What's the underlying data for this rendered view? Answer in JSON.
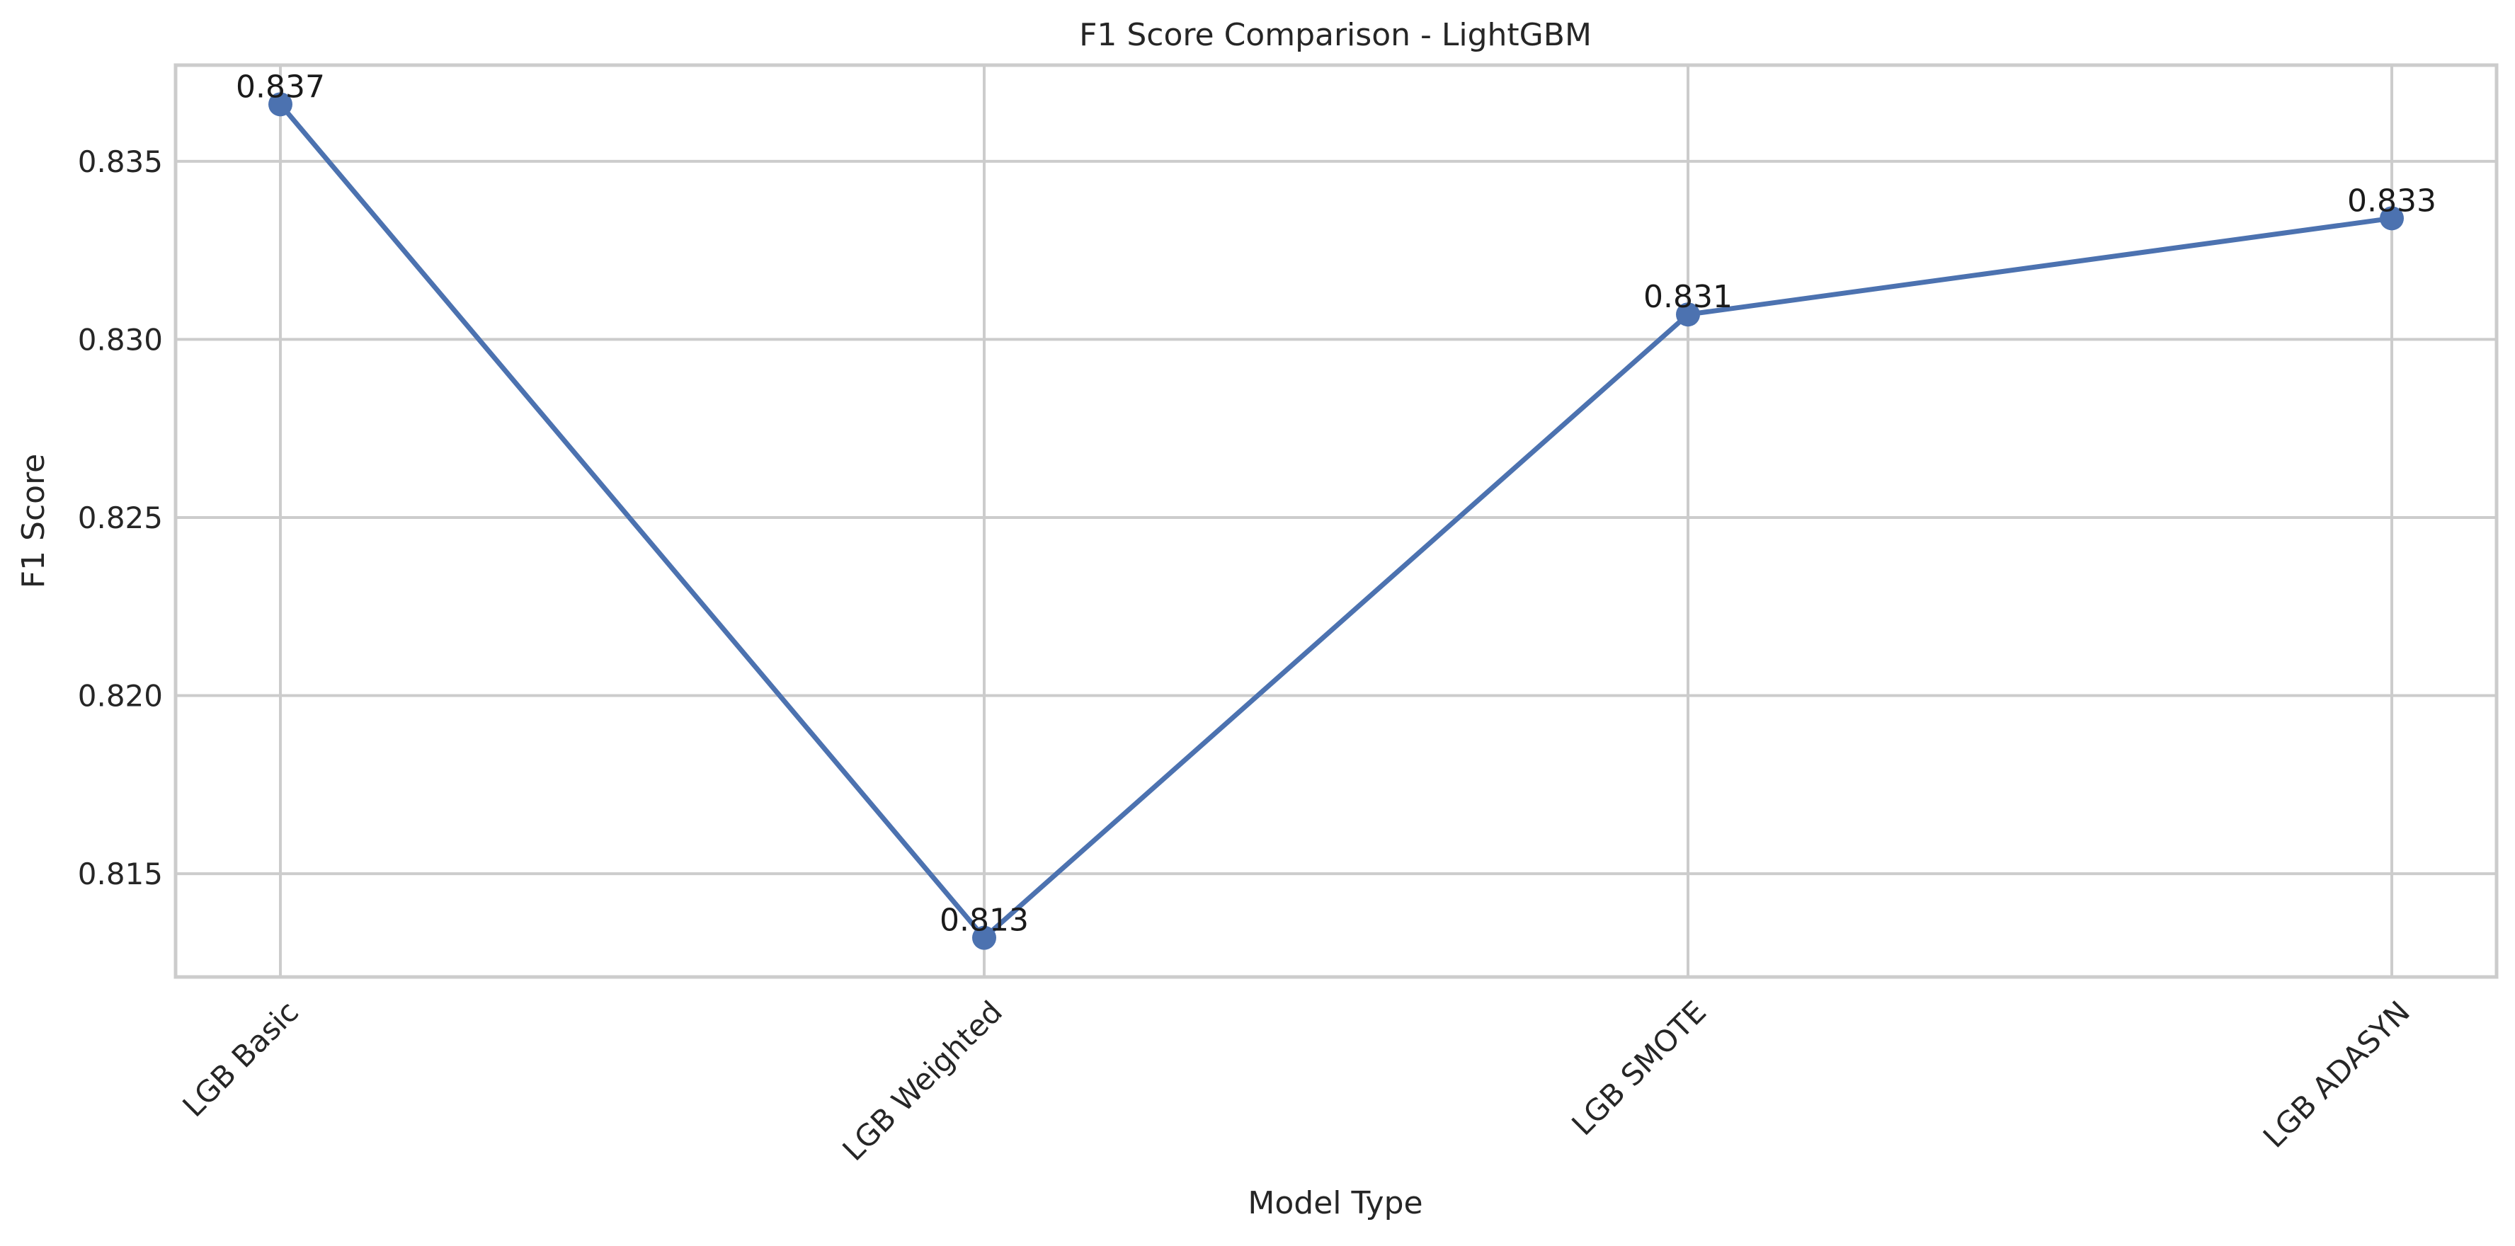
{
  "chart_data": {
    "type": "line",
    "title": "F1 Score Comparison - LightGBM",
    "xlabel": "Model Type",
    "ylabel": "F1 Score",
    "categories": [
      "LGB Basic",
      "LGB Weighted",
      "LGB SMOTE",
      "LGB ADASYN"
    ],
    "values": [
      0.8366,
      0.8132,
      0.8307,
      0.8334
    ],
    "data_labels": [
      "0.837",
      "0.813",
      "0.831",
      "0.833"
    ],
    "yticks": [
      0.815,
      0.82,
      0.825,
      0.83,
      0.835
    ],
    "ytick_labels": [
      "0.815",
      "0.820",
      "0.825",
      "0.830",
      "0.835"
    ],
    "ylim": [
      0.8121,
      0.8377
    ],
    "x_tick_rotation": -45,
    "grid": true,
    "line_color": "#4c72b0",
    "marker": "circle"
  }
}
